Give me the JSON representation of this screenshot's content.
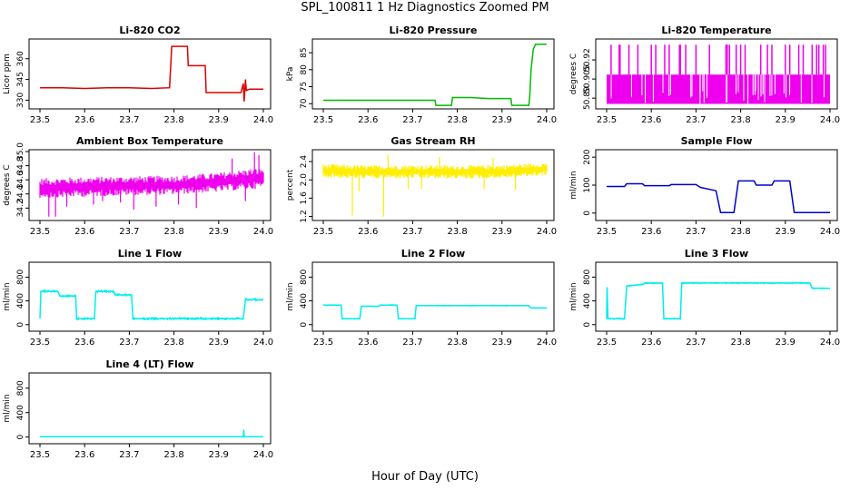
{
  "page": {
    "title": "SPL_100811  1 Hz Diagnostics Zoomed PM",
    "xlabel": "Hour of Day (UTC)"
  },
  "chart_data": [
    {
      "type": "line",
      "title": "Li-820 CO2",
      "ylabel": "Licor ppm",
      "color": "#dd0000",
      "xlim": [
        23.5,
        24.0
      ],
      "ylim": [
        325,
        373
      ],
      "xticks": [
        "23.5",
        "23.6",
        "23.7",
        "23.8",
        "23.9",
        "24.0"
      ],
      "yticks": [
        {
          "v": 330,
          "label": "330"
        },
        {
          "v": 345,
          "label": "345"
        },
        {
          "v": 360,
          "label": "360"
        }
      ],
      "series": [
        {
          "x": [
            23.5,
            23.55,
            23.6,
            23.65,
            23.7,
            23.75,
            23.79,
            23.795,
            23.83,
            23.832,
            23.87,
            23.872,
            23.95,
            23.955,
            23.957,
            23.96,
            23.962,
            23.965,
            23.97,
            24.0
          ],
          "y": [
            339,
            339,
            338.5,
            339,
            339,
            338.5,
            339,
            369,
            369,
            355,
            355,
            335.5,
            335.5,
            342,
            329,
            345,
            337,
            337.5,
            338,
            338
          ]
        }
      ]
    },
    {
      "type": "line",
      "title": "Li-820 Pressure",
      "ylabel": "kPa",
      "color": "#00bb00",
      "xlim": [
        23.5,
        24.0
      ],
      "ylim": [
        69,
        88.5
      ],
      "xticks": [
        "23.5",
        "23.6",
        "23.7",
        "23.8",
        "23.9",
        "24.0"
      ],
      "yticks": [
        {
          "v": 70,
          "label": "70"
        },
        {
          "v": 75,
          "label": "75"
        },
        {
          "v": 80,
          "label": "80"
        },
        {
          "v": 85,
          "label": "85"
        }
      ],
      "series": [
        {
          "x": [
            23.5,
            23.75,
            23.752,
            23.787,
            23.789,
            23.83,
            23.87,
            23.92,
            23.922,
            23.96,
            23.962,
            23.965,
            23.97,
            23.975,
            24.0
          ],
          "y": [
            71,
            71,
            69.5,
            69.5,
            71.8,
            71.8,
            71.5,
            71.5,
            69.5,
            69.5,
            72,
            80,
            86,
            87.5,
            87.5
          ]
        }
      ]
    },
    {
      "type": "line",
      "title": "Li-820 Temperature",
      "ylabel": "degrees C",
      "color": "#ee00ee",
      "xlim": [
        23.5,
        24.0
      ],
      "ylim": [
        50.883,
        50.935
      ],
      "xticks": [
        "23.5",
        "23.6",
        "23.7",
        "23.8",
        "23.9",
        "24.0"
      ],
      "yticks": [
        {
          "v": 50.89,
          "label": "50.89"
        },
        {
          "v": 50.905,
          "label": "50.905"
        },
        {
          "v": 50.92,
          "label": "50.92"
        }
      ],
      "band": {
        "low": 50.8855,
        "high": 50.9085
      },
      "spike_x": [
        23.51,
        23.528,
        23.53,
        23.55,
        23.57,
        23.6,
        23.61,
        23.63,
        23.64,
        23.663,
        23.665,
        23.677,
        23.7,
        23.73,
        23.767,
        23.77,
        23.775,
        23.79,
        23.8,
        23.81,
        23.845,
        23.86,
        23.87,
        23.9,
        23.91,
        23.93,
        23.94,
        23.96,
        23.97,
        23.975,
        23.985,
        23.99
      ],
      "spike_top": 50.932
    },
    {
      "type": "line",
      "title": "Ambient Box Temperature",
      "ylabel": "degrees C",
      "color": "#ee00ee",
      "xlim": [
        23.5,
        24.0
      ],
      "ylim": [
        34.05,
        35.0
      ],
      "xticks": [
        "23.5",
        "23.6",
        "23.7",
        "23.8",
        "23.9",
        "24.0"
      ],
      "yticks": [
        {
          "v": 34.2,
          "label": "34.2"
        },
        {
          "v": 34.4,
          "label": "34.4"
        },
        {
          "v": 34.6,
          "label": "34.6"
        },
        {
          "v": 34.8,
          "label": "34.8"
        },
        {
          "v": 35.0,
          "label": "35.0"
        }
      ],
      "band_series": {
        "x": [
          23.5,
          23.6,
          23.7,
          23.8,
          23.9,
          24.0
        ],
        "low": [
          34.34,
          34.36,
          34.38,
          34.39,
          34.43,
          34.48
        ],
        "high": [
          34.62,
          34.64,
          34.65,
          34.66,
          34.7,
          34.78
        ]
      },
      "spikes": [
        {
          "x": 23.52,
          "y": 34.08
        },
        {
          "x": 23.535,
          "y": 34.08
        },
        {
          "x": 23.56,
          "y": 34.22
        },
        {
          "x": 23.62,
          "y": 34.25
        },
        {
          "x": 23.64,
          "y": 34.3
        },
        {
          "x": 23.68,
          "y": 34.28
        },
        {
          "x": 23.71,
          "y": 34.18
        },
        {
          "x": 23.76,
          "y": 34.22
        },
        {
          "x": 23.81,
          "y": 34.25
        },
        {
          "x": 23.85,
          "y": 34.2
        },
        {
          "x": 23.96,
          "y": 34.3
        },
        {
          "x": 23.98,
          "y": 34.99
        },
        {
          "x": 23.99,
          "y": 34.95
        },
        {
          "x": 23.93,
          "y": 34.9
        }
      ]
    },
    {
      "type": "line",
      "title": "Gas Stream RH",
      "ylabel": "percent",
      "color": "#ffee00",
      "xlim": [
        23.5,
        24.0
      ],
      "ylim": [
        1.15,
        2.62
      ],
      "xticks": [
        "23.5",
        "23.6",
        "23.7",
        "23.8",
        "23.9",
        "24.0"
      ],
      "yticks": [
        {
          "v": 1.2,
          "label": "1.2"
        },
        {
          "v": 1.6,
          "label": "1.6"
        },
        {
          "v": 2.0,
          "label": "2.0"
        },
        {
          "v": 2.4,
          "label": "2.4"
        }
      ],
      "band_series": {
        "x": [
          23.5,
          23.6,
          23.7,
          23.8,
          23.9,
          24.0
        ],
        "low": [
          2.05,
          2.02,
          2.03,
          2.02,
          2.03,
          2.1
        ],
        "high": [
          2.35,
          2.32,
          2.33,
          2.32,
          2.33,
          2.38
        ]
      },
      "spikes": [
        {
          "x": 23.565,
          "y": 1.22
        },
        {
          "x": 23.635,
          "y": 1.2
        },
        {
          "x": 23.58,
          "y": 1.75
        },
        {
          "x": 23.69,
          "y": 1.8
        },
        {
          "x": 23.72,
          "y": 1.8
        },
        {
          "x": 23.86,
          "y": 1.8
        },
        {
          "x": 23.93,
          "y": 1.78
        },
        {
          "x": 23.645,
          "y": 2.55
        },
        {
          "x": 23.76,
          "y": 2.5
        },
        {
          "x": 23.88,
          "y": 2.48
        }
      ]
    },
    {
      "type": "line",
      "title": "Sample Flow",
      "ylabel": "ml/min",
      "color": "#0000cc",
      "xlim": [
        23.5,
        24.0
      ],
      "ylim": [
        -20,
        220
      ],
      "xticks": [
        "23.5",
        "23.6",
        "23.7",
        "23.8",
        "23.9",
        "24.0"
      ],
      "yticks": [
        {
          "v": 0,
          "label": "0"
        },
        {
          "v": 100,
          "label": "100"
        },
        {
          "v": 200,
          "label": "200"
        }
      ],
      "series": [
        {
          "x": [
            23.5,
            23.54,
            23.545,
            23.58,
            23.585,
            23.64,
            23.645,
            23.7,
            23.71,
            23.745,
            23.755,
            23.785,
            23.795,
            23.83,
            23.835,
            23.87,
            23.875,
            23.91,
            23.92,
            24.0
          ],
          "y": [
            95,
            95,
            105,
            105,
            98,
            98,
            102,
            102,
            92,
            80,
            2,
            2,
            115,
            115,
            100,
            100,
            115,
            115,
            2,
            2
          ]
        }
      ]
    },
    {
      "type": "line",
      "title": "Line 1 Flow",
      "ylabel": "ml/min",
      "color": "#00eeee",
      "xlim": [
        23.5,
        24.0
      ],
      "ylim": [
        -80,
        1020
      ],
      "xticks": [
        "23.5",
        "23.6",
        "23.7",
        "23.8",
        "23.9",
        "24.0"
      ],
      "yticks": [
        {
          "v": 0,
          "label": "0"
        },
        {
          "v": 400,
          "label": "400"
        },
        {
          "v": 800,
          "label": "800"
        }
      ],
      "series": [
        {
          "x": [
            23.5,
            23.502,
            23.54,
            23.545,
            23.58,
            23.582,
            23.622,
            23.625,
            23.665,
            23.668,
            23.705,
            23.708,
            23.955,
            23.96,
            24.0
          ],
          "y": [
            100,
            560,
            560,
            480,
            480,
            100,
            100,
            560,
            560,
            500,
            500,
            100,
            100,
            420,
            420
          ]
        }
      ],
      "noise": 30
    },
    {
      "type": "line",
      "title": "Line 2 Flow",
      "ylabel": "ml/min",
      "color": "#00eeee",
      "xlim": [
        23.5,
        24.0
      ],
      "ylim": [
        -80,
        1020
      ],
      "xticks": [
        "23.5",
        "23.6",
        "23.7",
        "23.8",
        "23.9",
        "24.0"
      ],
      "yticks": [
        {
          "v": 0,
          "label": "0"
        },
        {
          "v": 400,
          "label": "400"
        },
        {
          "v": 800,
          "label": "800"
        }
      ],
      "series": [
        {
          "x": [
            23.5,
            23.54,
            23.542,
            23.582,
            23.585,
            23.625,
            23.628,
            23.665,
            23.668,
            23.705,
            23.708,
            23.96,
            23.965,
            24.0
          ],
          "y": [
            330,
            330,
            100,
            100,
            310,
            310,
            330,
            330,
            100,
            100,
            320,
            320,
            280,
            280
          ]
        }
      ],
      "noise": 15
    },
    {
      "type": "line",
      "title": "Line 3 Flow",
      "ylabel": "ml/min",
      "color": "#00eeee",
      "xlim": [
        23.5,
        24.0
      ],
      "ylim": [
        -80,
        1020
      ],
      "xticks": [
        "23.5",
        "23.6",
        "23.7",
        "23.8",
        "23.9",
        "24.0"
      ],
      "yticks": [
        {
          "v": 0,
          "label": "0"
        },
        {
          "v": 400,
          "label": "400"
        },
        {
          "v": 800,
          "label": "800"
        }
      ],
      "series": [
        {
          "x": [
            23.5,
            23.501,
            23.503,
            23.54,
            23.545,
            23.582,
            23.585,
            23.625,
            23.628,
            23.665,
            23.668,
            23.955,
            23.96,
            24.0
          ],
          "y": [
            100,
            630,
            100,
            100,
            650,
            680,
            700,
            700,
            100,
            100,
            700,
            700,
            610,
            610
          ]
        }
      ],
      "noise": 20
    },
    {
      "type": "line",
      "title": "Line 4 (LT) Flow",
      "ylabel": "ml/min",
      "color": "#00eeee",
      "xlim": [
        23.5,
        24.0
      ],
      "ylim": [
        -80,
        1020
      ],
      "xticks": [
        "23.5",
        "23.6",
        "23.7",
        "23.8",
        "23.9",
        "24.0"
      ],
      "yticks": [
        {
          "v": 0,
          "label": "0"
        },
        {
          "v": 400,
          "label": "400"
        },
        {
          "v": 800,
          "label": "800"
        }
      ],
      "series": [
        {
          "x": [
            23.5,
            23.955,
            23.956,
            23.957,
            23.96,
            24.0
          ],
          "y": [
            5,
            5,
            120,
            5,
            5,
            5
          ]
        }
      ]
    }
  ]
}
